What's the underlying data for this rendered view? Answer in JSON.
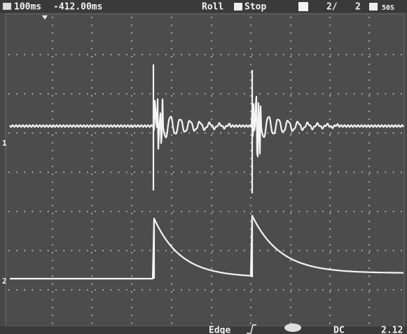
{
  "header": {
    "timebase": "100ms",
    "offset": "-412.00ms",
    "mode": "Roll",
    "state": "Stop",
    "page": "2/",
    "pages": "2",
    "rate": "50S"
  },
  "channels": {
    "ch1": "1",
    "ch2": "2"
  },
  "footer": {
    "trigger": "Edge",
    "coupling": "DC",
    "level": "2.12"
  }
}
